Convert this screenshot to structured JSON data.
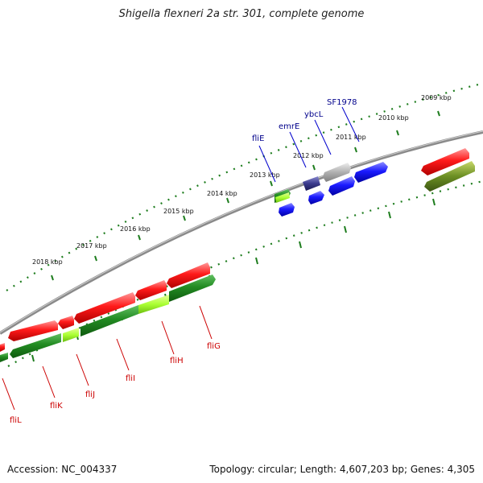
{
  "title": "Shigella flexneri 2a str. 301, complete genome",
  "footer": {
    "accession": "Accession: NC_004337",
    "summary": "Topology: circular; Length: 4,607,203 bp; Genes: 4,305"
  },
  "kbp_labels": [
    "2009 kbp",
    "2010 kbp",
    "2011 kbp",
    "2012 kbp",
    "2013 kbp",
    "2014 kbp",
    "2015 kbp",
    "2016 kbp",
    "2017 kbp",
    "2018 kbp"
  ],
  "gene_labels_top": [
    "SF1978",
    "ybcL",
    "emrE",
    "fliE"
  ],
  "gene_labels_bottom": [
    "fliG",
    "fliH",
    "fliI",
    "fliJ",
    "fliK",
    "fliL"
  ],
  "colors": {
    "forward_gene": "#ff0000",
    "reverse_gene": "#228b22",
    "highlight_gene": "#aaff33",
    "blue_gene": "#1a1aff",
    "navy_gene": "#2b2b7a",
    "grey_gene": "#b0b0b0",
    "olive_gene": "#6b8e23",
    "tick_green": "#1e7d1e",
    "top_label": "#00008b",
    "bottom_label": "#cc0000",
    "backbone": "#777777"
  }
}
